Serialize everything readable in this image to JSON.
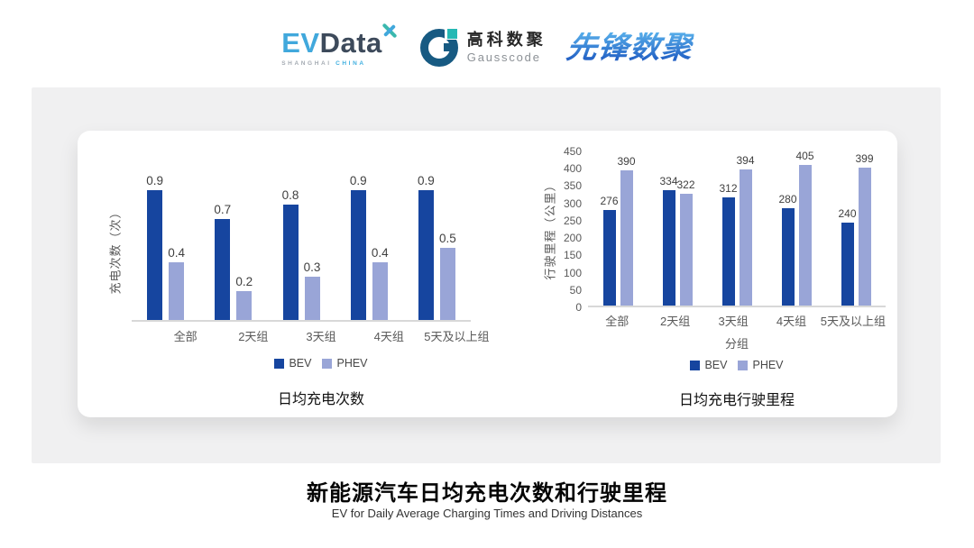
{
  "header": {
    "evdata": {
      "ev": "EV",
      "data": "Data",
      "sub_left": "SHANGHAI",
      "sub_right": "CHINA"
    },
    "gausscode": {
      "cn": "高科数聚",
      "en": "Gausscode"
    },
    "xianfeng": {
      "text": "先锋数聚"
    }
  },
  "colors": {
    "bev": "#16459f",
    "phev": "#99a5d7",
    "panel": "#f0f0f1",
    "axis_text": "#595959",
    "value_label": "#3f3f3f",
    "baseline": "#d8d8d8"
  },
  "chart_data": [
    {
      "type": "bar",
      "title": "日均充电次数",
      "ylabel": "充电次数（次）",
      "xlabel": "",
      "categories": [
        "全部",
        "2天组",
        "3天组",
        "4天组",
        "5天及以上组"
      ],
      "series": [
        {
          "name": "BEV",
          "color": "#16459f",
          "values": [
            0.9,
            0.7,
            0.8,
            0.9,
            0.9
          ],
          "labels": [
            "0.9",
            "0.7",
            "0.8",
            "0.9",
            "0.9"
          ]
        },
        {
          "name": "PHEV",
          "color": "#99a5d7",
          "values": [
            0.4,
            0.2,
            0.3,
            0.4,
            0.5
          ],
          "labels": [
            "0.4",
            "0.2",
            "0.3",
            "0.4",
            "0.5"
          ]
        }
      ],
      "ylim": [
        0,
        1.0
      ],
      "yticks": [],
      "grid": false,
      "legend_position": "bottom"
    },
    {
      "type": "bar",
      "title": "日均充电行驶里程",
      "ylabel": "行驶里程（公里）",
      "xlabel": "分组",
      "categories": [
        "全部",
        "2天组",
        "3天组",
        "4天组",
        "5天及以上组"
      ],
      "series": [
        {
          "name": "BEV",
          "color": "#16459f",
          "values": [
            276,
            334,
            312,
            280,
            240
          ],
          "labels": [
            "276",
            "334",
            "312",
            "280",
            "240"
          ]
        },
        {
          "name": "PHEV",
          "color": "#99a5d7",
          "values": [
            390,
            322,
            394,
            405,
            399
          ],
          "labels": [
            "390",
            "322",
            "394",
            "405",
            "399"
          ]
        }
      ],
      "ylim": [
        0,
        450
      ],
      "yticks": [
        0,
        50,
        100,
        150,
        200,
        250,
        300,
        350,
        400,
        450
      ],
      "grid": false,
      "legend_position": "bottom"
    }
  ],
  "footer": {
    "title": "新能源汽车日均充电次数和行驶里程",
    "subtitle": "EV for Daily Average Charging Times and Driving Distances"
  }
}
